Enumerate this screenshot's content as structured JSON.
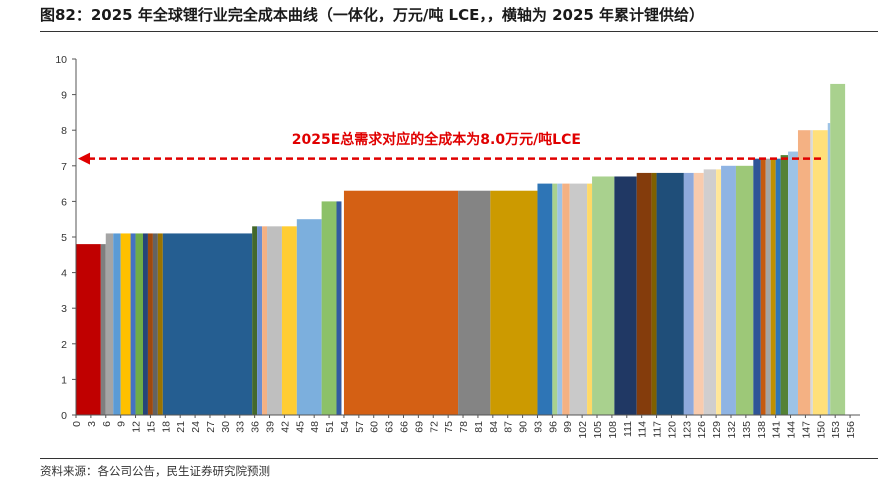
{
  "figure": {
    "title": "图82：2025 年全球锂行业完全成本曲线（一体化，万元/吨 LCE，，横轴为 2025 年累计锂供给）",
    "source": "资料来源：各公司公告，民生证券研究院预测"
  },
  "chart_data": {
    "type": "bar",
    "title": "",
    "xlabel": "",
    "ylabel": "",
    "xlim": [
      0,
      158
    ],
    "ylim": [
      0,
      10
    ],
    "grid": false,
    "x_ticks": [
      "0",
      "3",
      "6",
      "9",
      "12",
      "15",
      "18",
      "21",
      "24",
      "27",
      "30",
      "33",
      "36",
      "39",
      "42",
      "45",
      "48",
      "51",
      "54",
      "57",
      "60",
      "63",
      "66",
      "69",
      "72",
      "75",
      "78",
      "81",
      "84",
      "87",
      "90",
      "93",
      "96",
      "99",
      "102",
      "105",
      "108",
      "111",
      "114",
      "117",
      "120",
      "123",
      "126",
      "129",
      "132",
      "135",
      "138",
      "141",
      "144",
      "147",
      "150",
      "153",
      "156"
    ],
    "y_ticks": [
      "0",
      "1",
      "2",
      "3",
      "4",
      "5",
      "6",
      "7",
      "8",
      "9",
      "10"
    ],
    "reference_line": {
      "value": 7.2,
      "style": "dashed",
      "color": "#e00000"
    },
    "annotation": "2025E总需求对应的全成本为8.0万元/吨LCE",
    "bars": [
      {
        "x0": 0.0,
        "x1": 5.0,
        "value": 4.8,
        "color": "#C00000"
      },
      {
        "x0": 5.0,
        "x1": 6.0,
        "value": 4.8,
        "color": "#7F7F7F"
      },
      {
        "x0": 6.0,
        "x1": 7.5,
        "value": 5.1,
        "color": "#A5A5A5"
      },
      {
        "x0": 7.5,
        "x1": 9.0,
        "value": 5.1,
        "color": "#5B9BD5"
      },
      {
        "x0": 9.0,
        "x1": 11.0,
        "value": 5.1,
        "color": "#FFC000"
      },
      {
        "x0": 11.0,
        "x1": 12.0,
        "value": 5.1,
        "color": "#4472C4"
      },
      {
        "x0": 12.0,
        "x1": 13.5,
        "value": 5.1,
        "color": "#70AD47"
      },
      {
        "x0": 13.5,
        "x1": 14.5,
        "value": 5.1,
        "color": "#264478"
      },
      {
        "x0": 14.5,
        "x1": 15.5,
        "value": 5.1,
        "color": "#9E480E"
      },
      {
        "x0": 15.5,
        "x1": 16.5,
        "value": 5.1,
        "color": "#636363"
      },
      {
        "x0": 16.5,
        "x1": 17.5,
        "value": 5.1,
        "color": "#997300"
      },
      {
        "x0": 17.5,
        "x1": 35.5,
        "value": 5.1,
        "color": "#255E91"
      },
      {
        "x0": 35.5,
        "x1": 36.5,
        "value": 5.3,
        "color": "#43682B"
      },
      {
        "x0": 36.5,
        "x1": 37.5,
        "value": 5.3,
        "color": "#698ED0"
      },
      {
        "x0": 37.5,
        "x1": 38.5,
        "value": 5.3,
        "color": "#F4B183"
      },
      {
        "x0": 38.5,
        "x1": 41.5,
        "value": 5.3,
        "color": "#BFBFBF"
      },
      {
        "x0": 41.5,
        "x1": 44.5,
        "value": 5.3,
        "color": "#FFCD33"
      },
      {
        "x0": 44.5,
        "x1": 49.5,
        "value": 5.5,
        "color": "#7CAFDD"
      },
      {
        "x0": 49.5,
        "x1": 52.5,
        "value": 6.0,
        "color": "#8CC168"
      },
      {
        "x0": 52.5,
        "x1": 53.5,
        "value": 6.0,
        "color": "#335AA1"
      },
      {
        "x0": 54.0,
        "x1": 77.0,
        "value": 6.3,
        "color": "#D46014"
      },
      {
        "x0": 77.0,
        "x1": 83.5,
        "value": 6.3,
        "color": "#848484"
      },
      {
        "x0": 83.5,
        "x1": 93.0,
        "value": 6.3,
        "color": "#CC9A00"
      },
      {
        "x0": 93.0,
        "x1": 96.0,
        "value": 6.5,
        "color": "#2E75B6"
      },
      {
        "x0": 96.0,
        "x1": 97.0,
        "value": 6.5,
        "color": "#A9D18E"
      },
      {
        "x0": 97.0,
        "x1": 98.0,
        "value": 6.5,
        "color": "#9DC3E6"
      },
      {
        "x0": 98.0,
        "x1": 99.5,
        "value": 6.5,
        "color": "#F4B183"
      },
      {
        "x0": 99.5,
        "x1": 103.0,
        "value": 6.5,
        "color": "#C9C9C9"
      },
      {
        "x0": 103.0,
        "x1": 104.0,
        "value": 6.5,
        "color": "#FFD966"
      },
      {
        "x0": 104.0,
        "x1": 108.5,
        "value": 6.7,
        "color": "#A9D18E"
      },
      {
        "x0": 108.5,
        "x1": 113.0,
        "value": 6.7,
        "color": "#203864"
      },
      {
        "x0": 113.0,
        "x1": 116.0,
        "value": 6.8,
        "color": "#843C0C"
      },
      {
        "x0": 116.0,
        "x1": 117.0,
        "value": 6.8,
        "color": "#7F6000"
      },
      {
        "x0": 117.0,
        "x1": 122.5,
        "value": 6.8,
        "color": "#1F4E79"
      },
      {
        "x0": 122.5,
        "x1": 124.5,
        "value": 6.8,
        "color": "#8FAADC"
      },
      {
        "x0": 124.5,
        "x1": 126.5,
        "value": 6.8,
        "color": "#F8CBAD"
      },
      {
        "x0": 126.5,
        "x1": 129.0,
        "value": 6.9,
        "color": "#D0CECE"
      },
      {
        "x0": 129.0,
        "x1": 130.0,
        "value": 6.9,
        "color": "#FFE699"
      },
      {
        "x0": 130.0,
        "x1": 133.0,
        "value": 7.0,
        "color": "#8FB4E3"
      },
      {
        "x0": 133.0,
        "x1": 136.5,
        "value": 7.0,
        "color": "#9DC878"
      },
      {
        "x0": 136.5,
        "x1": 138.0,
        "value": 7.2,
        "color": "#2F5597"
      },
      {
        "x0": 138.0,
        "x1": 139.0,
        "value": 7.2,
        "color": "#C55A11"
      },
      {
        "x0": 139.0,
        "x1": 140.0,
        "value": 7.2,
        "color": "#A5A5A5"
      },
      {
        "x0": 140.0,
        "x1": 141.0,
        "value": 7.2,
        "color": "#BF9000"
      },
      {
        "x0": 141.0,
        "x1": 142.0,
        "value": 7.2,
        "color": "#2E75B6"
      },
      {
        "x0": 142.0,
        "x1": 143.5,
        "value": 7.3,
        "color": "#548235"
      },
      {
        "x0": 143.5,
        "x1": 145.5,
        "value": 7.4,
        "color": "#9DC3E6"
      },
      {
        "x0": 145.5,
        "x1": 148.0,
        "value": 8.0,
        "color": "#F4B183"
      },
      {
        "x0": 148.0,
        "x1": 148.5,
        "value": 8.0,
        "color": "#D9D9D9"
      },
      {
        "x0": 148.5,
        "x1": 151.5,
        "value": 8.0,
        "color": "#FFE07A"
      },
      {
        "x0": 151.5,
        "x1": 152.0,
        "value": 8.2,
        "color": "#9DC3E6"
      },
      {
        "x0": 152.0,
        "x1": 155.0,
        "value": 9.3,
        "color": "#A9D18E"
      }
    ]
  }
}
